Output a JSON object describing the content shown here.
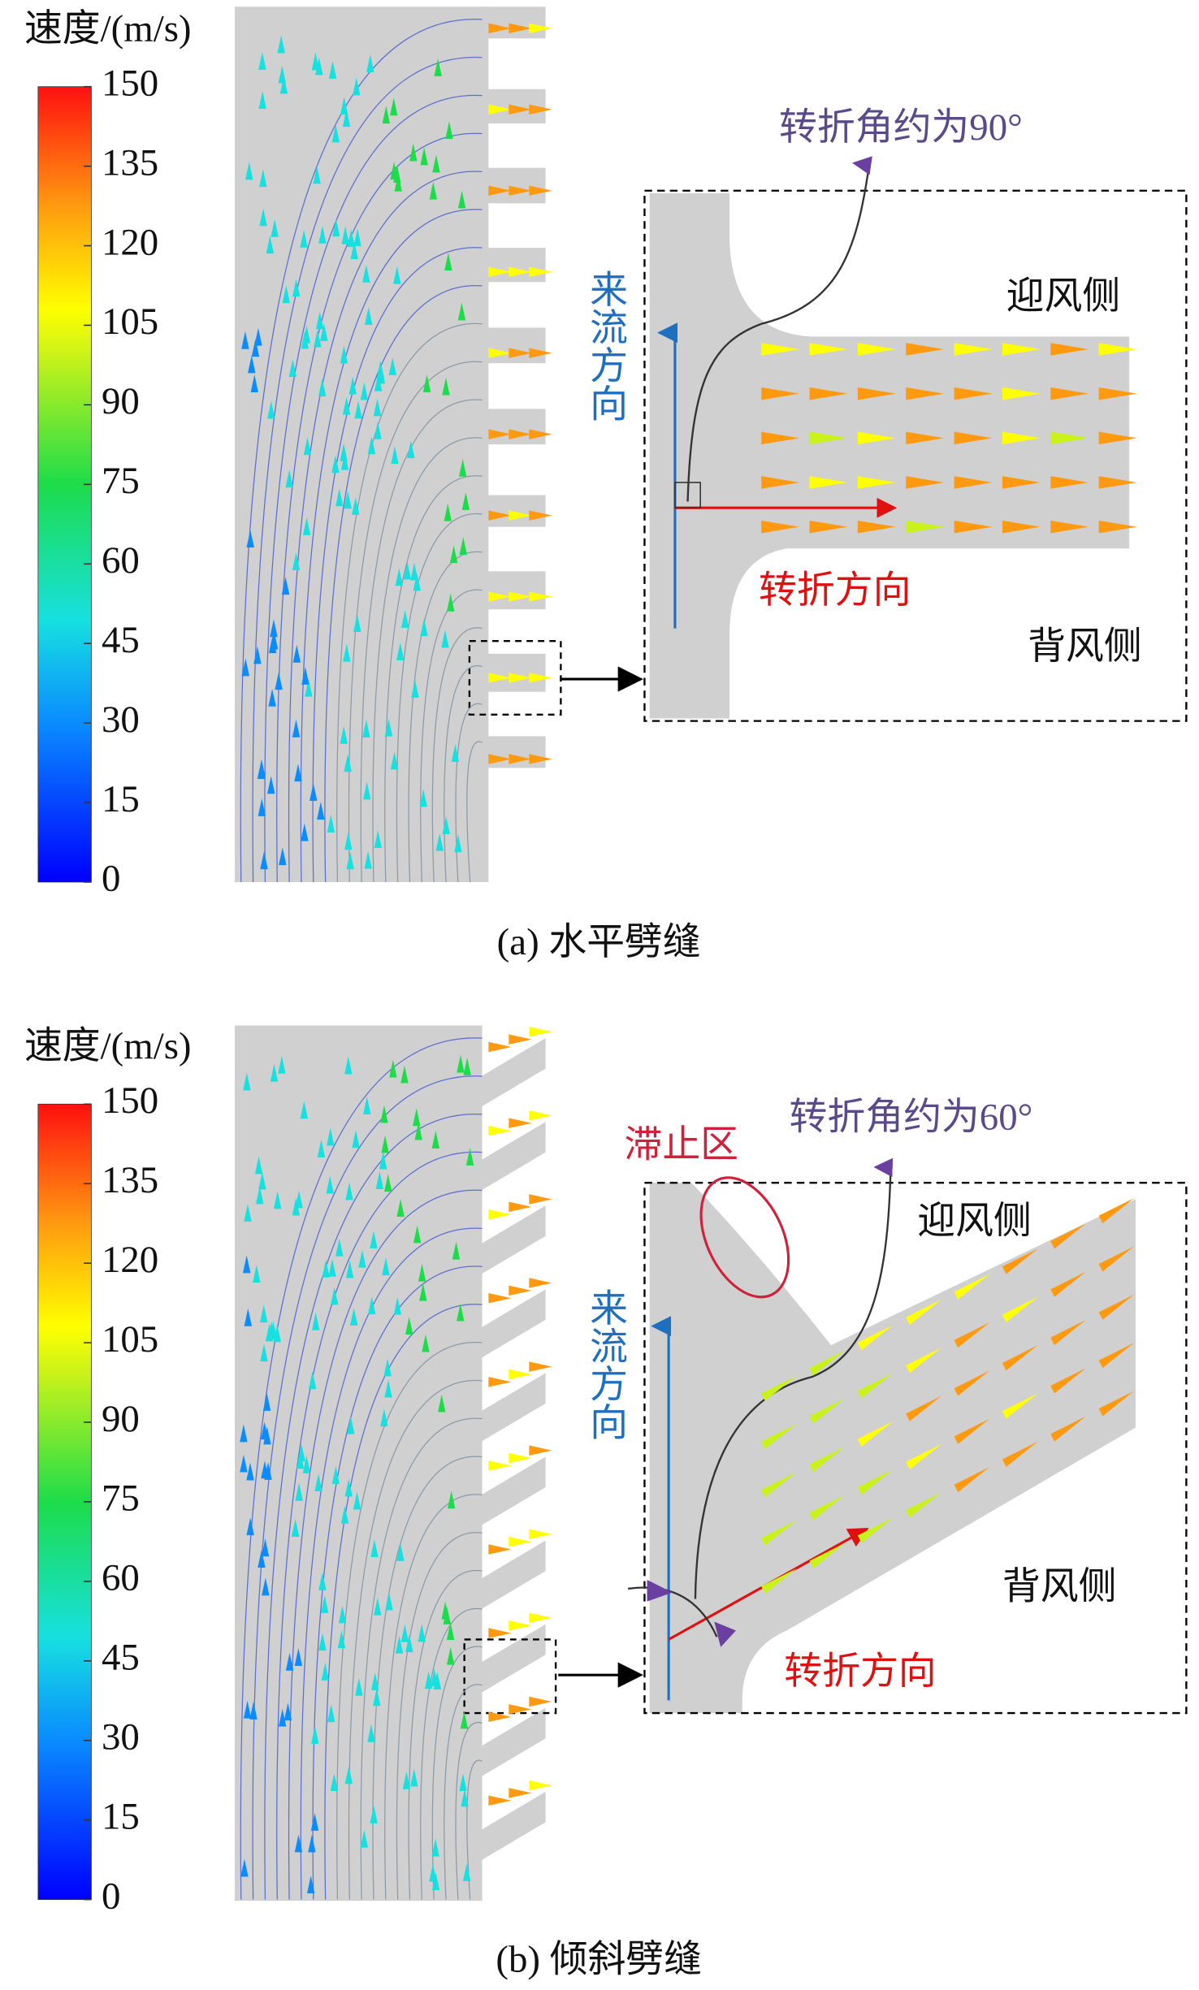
{
  "panels": [
    {
      "colorbar": {
        "title": "速度/(m/s)",
        "range": [
          0,
          150
        ],
        "ticks": [
          0,
          15,
          30,
          45,
          60,
          75,
          90,
          105,
          120,
          135,
          150
        ]
      },
      "annotations": [
        "转折角约为90°",
        "迎风侧",
        "背风侧",
        "来流方向",
        "转折方向"
      ],
      "caption": "(a) 水平劈缝"
    },
    {
      "colorbar": {
        "title": "速度/(m/s)",
        "range": [
          0,
          150
        ],
        "ticks": [
          0,
          15,
          30,
          45,
          60,
          75,
          90,
          105,
          120,
          135,
          150
        ]
      },
      "annotations": [
        "滞止区",
        "转折角约为60°",
        "迎风侧",
        "背风侧",
        "来流方向",
        "转折方向"
      ],
      "caption": "(b) 倾斜劈缝"
    }
  ]
}
